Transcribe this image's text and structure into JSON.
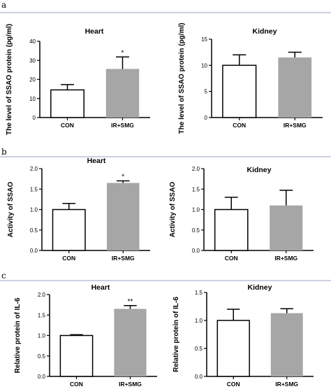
{
  "panel_letters": [
    "a",
    "b",
    "c"
  ],
  "colors": {
    "con_fill": "#ffffff",
    "ir_fill": "#a6a6a6",
    "edge": "#000000",
    "divider": "#9aa0c8"
  },
  "chart_data": [
    {
      "type": "bar",
      "title": "Heart",
      "ylabel": "The level of  SSAO protein (pg/ml)",
      "ylim": [
        0,
        40
      ],
      "yticks": [
        "0",
        "10",
        "20",
        "30",
        "40"
      ],
      "categories": [
        "CON",
        "IR+SMG"
      ],
      "values": [
        14.5,
        25.5
      ],
      "errors": [
        2.8,
        6.3
      ],
      "annotations": [
        "",
        "*"
      ],
      "grid": false
    },
    {
      "type": "bar",
      "title": "Kidney",
      "ylabel": "The level of  SSAO protein (pg/ml)",
      "ylim": [
        0,
        15
      ],
      "yticks": [
        "0",
        "5",
        "10",
        "15"
      ],
      "categories": [
        "CON",
        "IR+SMG"
      ],
      "values": [
        10,
        11.5
      ],
      "errors": [
        2.0,
        1.0
      ],
      "annotations": [
        "",
        ""
      ],
      "grid": false
    },
    {
      "type": "bar",
      "title": "Heart",
      "ylabel": "Activity of SSAO",
      "ylim": [
        0,
        2.0
      ],
      "yticks": [
        "0.0",
        "0.5",
        "1.0",
        "1.5",
        "2.0"
      ],
      "categories": [
        "CON",
        "IR+SMG"
      ],
      "values": [
        1.0,
        1.65
      ],
      "errors": [
        0.15,
        0.05
      ],
      "annotations": [
        "",
        "*"
      ],
      "grid": false
    },
    {
      "type": "bar",
      "title": "Kidney",
      "ylabel": "Activity of SSAO",
      "ylim": [
        0,
        2.0
      ],
      "yticks": [
        "0.0",
        "0.5",
        "1.0",
        "1.5",
        "2.0"
      ],
      "categories": [
        "CON",
        "IR+SMG"
      ],
      "values": [
        1.0,
        1.1
      ],
      "errors": [
        0.3,
        0.37
      ],
      "annotations": [
        "",
        ""
      ],
      "grid": false
    },
    {
      "type": "bar",
      "title": "Heart",
      "ylabel": "Relative protein of IL-6",
      "ylim": [
        0,
        2.0
      ],
      "yticks": [
        "0.0",
        "0.5",
        "1.0",
        "1.5",
        "2.0"
      ],
      "categories": [
        "CON",
        "IR+SMG"
      ],
      "values": [
        1.0,
        1.65
      ],
      "errors": [
        0.02,
        0.08
      ],
      "annotations": [
        "",
        "**"
      ],
      "grid": false
    },
    {
      "type": "bar",
      "title": "Kidney",
      "ylabel": "Relative protein of IL-6",
      "ylim": [
        0,
        1.5
      ],
      "yticks": [
        "0.0",
        "0.5",
        "1.0",
        "1.5"
      ],
      "categories": [
        "CON",
        "IR+SMG"
      ],
      "values": [
        1.0,
        1.13
      ],
      "errors": [
        0.2,
        0.08
      ],
      "annotations": [
        "",
        ""
      ],
      "grid": false
    }
  ]
}
